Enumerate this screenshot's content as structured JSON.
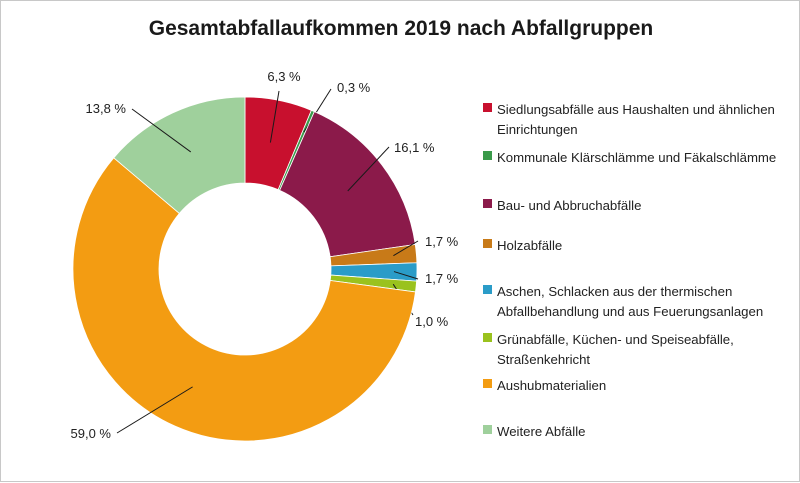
{
  "chart_data": {
    "type": "pie",
    "title": "Gesamtabfallaufkommen 2019 nach Abfallgruppen",
    "slices": [
      {
        "name": "Siedlungsabfälle aus Haushalten und ähnlichen Einrichtungen",
        "value": 6.3,
        "label": "6,3 %",
        "color": "#c8102e"
      },
      {
        "name": "Kommunale Klärschlämme und Fäkalschlämme",
        "value": 0.3,
        "label": "0,3 %",
        "color": "#3a9a4a"
      },
      {
        "name": "Bau- und Abbruchabfälle",
        "value": 16.1,
        "label": "16,1 %",
        "color": "#8b1a4a"
      },
      {
        "name": "Holzabfälle",
        "value": 1.7,
        "label": "1,7 %",
        "color": "#c87a18"
      },
      {
        "name": "Aschen, Schlacken aus der thermischen Abfallbehandlung und aus Feuerungsanlagen",
        "value": 1.7,
        "label": "1,7 %",
        "color": "#2a9cc8"
      },
      {
        "name": "Grünabfälle, Küchen- und Speiseabfälle, Straßenkehricht",
        "value": 1.0,
        "label": "1,0 %",
        "color": "#9ac21e"
      },
      {
        "name": "Aushubmaterialien",
        "value": 59.0,
        "label": "59,0 %",
        "color": "#f39c12"
      },
      {
        "name": "Weitere Abfälle",
        "value": 13.8,
        "label": "13,8 %",
        "color": "#9fd09c"
      }
    ],
    "legend_position": "right"
  }
}
